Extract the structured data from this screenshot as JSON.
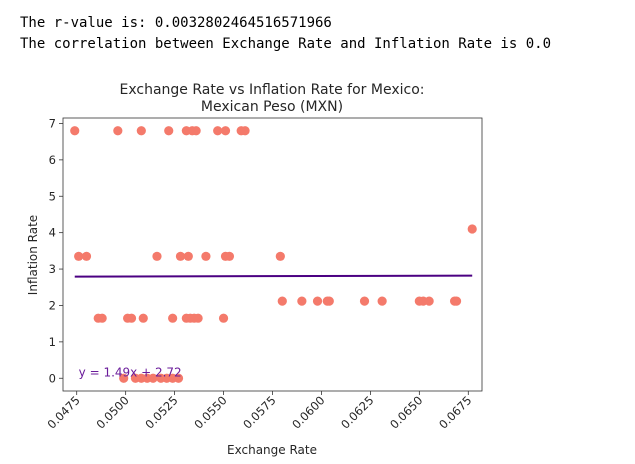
{
  "output": {
    "line1": "The r-value is: 0.0032802464516571966",
    "line2": "The correlation between Exchange Rate and Inflation Rate is 0.0"
  },
  "colors": {
    "points": "#f47a6b",
    "regression": "#4b0082",
    "equation": "#6a1b9a"
  },
  "chart_data": {
    "type": "scatter",
    "title_line1": "Exchange Rate vs Inflation Rate for Mexico:",
    "title_line2": "Mexican Peso (MXN)",
    "xlabel": "Exchange Rate",
    "ylabel": "Inflation Rate",
    "xlim": [
      0.0468,
      0.0682
    ],
    "ylim": [
      -0.35,
      7.15
    ],
    "xticks": [
      0.0475,
      0.05,
      0.0525,
      0.055,
      0.0575,
      0.06,
      0.0625,
      0.065,
      0.0675
    ],
    "xtick_labels": [
      "0.0475",
      "0.0500",
      "0.0525",
      "0.0550",
      "0.0575",
      "0.0600",
      "0.0625",
      "0.0650",
      "0.0675"
    ],
    "yticks": [
      0,
      1,
      2,
      3,
      4,
      5,
      6,
      7
    ],
    "ytick_labels": [
      "0",
      "1",
      "2",
      "3",
      "4",
      "5",
      "6",
      "7"
    ],
    "points": [
      {
        "x": 0.0474,
        "y": 6.8
      },
      {
        "x": 0.0496,
        "y": 6.8
      },
      {
        "x": 0.0508,
        "y": 6.8
      },
      {
        "x": 0.0522,
        "y": 6.8
      },
      {
        "x": 0.0531,
        "y": 6.8
      },
      {
        "x": 0.0534,
        "y": 6.8
      },
      {
        "x": 0.0536,
        "y": 6.8
      },
      {
        "x": 0.0547,
        "y": 6.8
      },
      {
        "x": 0.0551,
        "y": 6.8
      },
      {
        "x": 0.0559,
        "y": 6.8
      },
      {
        "x": 0.0561,
        "y": 6.8
      },
      {
        "x": 0.0476,
        "y": 3.35
      },
      {
        "x": 0.048,
        "y": 3.35
      },
      {
        "x": 0.0516,
        "y": 3.35
      },
      {
        "x": 0.0528,
        "y": 3.35
      },
      {
        "x": 0.0532,
        "y": 3.35
      },
      {
        "x": 0.0541,
        "y": 3.35
      },
      {
        "x": 0.0551,
        "y": 3.35
      },
      {
        "x": 0.0553,
        "y": 3.35
      },
      {
        "x": 0.0579,
        "y": 3.35
      },
      {
        "x": 0.0486,
        "y": 1.65
      },
      {
        "x": 0.0488,
        "y": 1.65
      },
      {
        "x": 0.0501,
        "y": 1.65
      },
      {
        "x": 0.0503,
        "y": 1.65
      },
      {
        "x": 0.0509,
        "y": 1.65
      },
      {
        "x": 0.0524,
        "y": 1.65
      },
      {
        "x": 0.0531,
        "y": 1.65
      },
      {
        "x": 0.0533,
        "y": 1.65
      },
      {
        "x": 0.0535,
        "y": 1.65
      },
      {
        "x": 0.0537,
        "y": 1.65
      },
      {
        "x": 0.055,
        "y": 1.65
      },
      {
        "x": 0.058,
        "y": 2.12
      },
      {
        "x": 0.059,
        "y": 2.12
      },
      {
        "x": 0.0598,
        "y": 2.12
      },
      {
        "x": 0.0603,
        "y": 2.12
      },
      {
        "x": 0.0604,
        "y": 2.12
      },
      {
        "x": 0.0622,
        "y": 2.12
      },
      {
        "x": 0.0631,
        "y": 2.12
      },
      {
        "x": 0.065,
        "y": 2.12
      },
      {
        "x": 0.0652,
        "y": 2.12
      },
      {
        "x": 0.0655,
        "y": 2.12
      },
      {
        "x": 0.0668,
        "y": 2.12
      },
      {
        "x": 0.0669,
        "y": 2.12
      },
      {
        "x": 0.0677,
        "y": 4.1
      },
      {
        "x": 0.0499,
        "y": 0.0
      },
      {
        "x": 0.0505,
        "y": 0.0
      },
      {
        "x": 0.0508,
        "y": 0.0
      },
      {
        "x": 0.0511,
        "y": 0.0
      },
      {
        "x": 0.0514,
        "y": 0.0
      },
      {
        "x": 0.0518,
        "y": 0.0
      },
      {
        "x": 0.0521,
        "y": 0.0
      },
      {
        "x": 0.0524,
        "y": 0.0
      },
      {
        "x": 0.0527,
        "y": 0.0
      }
    ],
    "regression": {
      "slope": 1.49,
      "intercept": 2.72,
      "x_range": [
        0.0474,
        0.0677
      ]
    },
    "equation_label": "y = 1.49x + 2.72",
    "equation_position": {
      "x": 0.0476,
      "y": 0.05
    },
    "grid": false,
    "legend": "none"
  }
}
